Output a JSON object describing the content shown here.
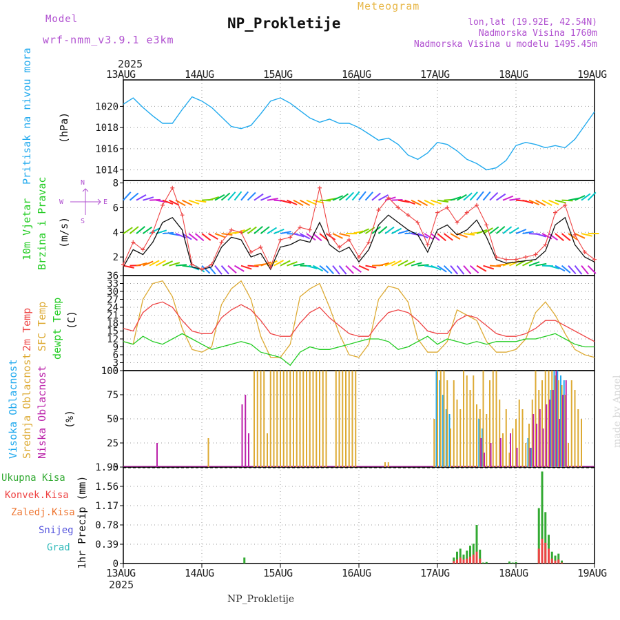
{
  "header": {
    "model_label": "Model",
    "model_name": "wrf-nmm_v3.9.1 e3km",
    "title": "NP_Prokletije",
    "meteogram_label": "Meteogram",
    "lonlat": "lon,lat (19.92E, 42.54N)",
    "elevation": "Nadmorska Visina 1760m",
    "model_elevation": "Nadmorska Visina u modelu 1495.45m"
  },
  "footer": {
    "station": "NP_Prokletije",
    "credit": "made by Angel"
  },
  "time_axis": {
    "year": "2025",
    "dates": [
      "13AUG",
      "14AUG",
      "15AUG",
      "16AUG",
      "17AUG",
      "18AUG",
      "19AUG"
    ]
  },
  "colors": {
    "pressure": "#22aaee",
    "wind_speed": "#111111",
    "wind_gust": "#ee4444",
    "temp_2m": "#ee4444",
    "temp_sfc": "#ddaa33",
    "dewpoint": "#22cc22",
    "cloud_high": "#22aaee",
    "cloud_mid": "#ddaa33",
    "cloud_low": "#bb22aa",
    "precip_total": "#33aa33",
    "precip_conv": "#ee4444",
    "precip_frz": "#ee7733",
    "snow": "#5555dd",
    "hail": "#33bbbb"
  },
  "chart_data": [
    {
      "type": "line",
      "id": "pressure",
      "ylabel_title": "Pritisak na nivou mora",
      "ylabel_unit": "(hPa)",
      "ylim": [
        1013,
        1022.5
      ],
      "yticks": [
        1014,
        1016,
        1018,
        1020
      ],
      "hours": [
        0,
        3,
        6,
        9,
        12,
        15,
        18,
        21,
        24,
        27,
        30,
        33,
        36,
        39,
        42,
        45,
        48,
        51,
        54,
        57,
        60,
        63,
        66,
        69,
        72,
        75,
        78,
        81,
        84,
        87,
        90,
        93,
        96,
        99,
        102,
        105,
        108,
        111,
        114,
        117,
        120,
        123,
        126,
        129,
        132,
        135,
        138,
        141,
        144
      ],
      "values": [
        1020.2,
        1020.8,
        1019.9,
        1019.1,
        1018.4,
        1018.4,
        1019.7,
        1020.9,
        1020.5,
        1019.9,
        1019.0,
        1018.1,
        1017.9,
        1018.2,
        1019.3,
        1020.5,
        1020.8,
        1020.3,
        1019.6,
        1018.9,
        1018.5,
        1018.8,
        1018.4,
        1018.4,
        1018.0,
        1017.4,
        1016.8,
        1017.0,
        1016.4,
        1015.4,
        1015.0,
        1015.6,
        1016.6,
        1016.4,
        1015.8,
        1015.0,
        1014.6,
        1014.0,
        1014.2,
        1014.9,
        1016.3,
        1016.6,
        1016.4,
        1016.1,
        1016.3,
        1016.1,
        1016.9,
        1018.2,
        1019.5
      ]
    },
    {
      "type": "line",
      "id": "wind",
      "ylabel_title": "10m Vjetar",
      "ylabel_title2": "Brzina i Pravac",
      "ylabel_unit": "(m/s)",
      "ylim": [
        0.5,
        8.2
      ],
      "yticks": [
        2,
        4,
        6,
        8
      ],
      "series": [
        {
          "name": "speed",
          "hours": [
            0,
            3,
            6,
            9,
            12,
            15,
            18,
            21,
            24,
            27,
            30,
            33,
            36,
            39,
            42,
            45,
            48,
            51,
            54,
            57,
            60,
            63,
            66,
            69,
            72,
            75,
            78,
            81,
            84,
            87,
            90,
            93,
            96,
            99,
            102,
            105,
            108,
            111,
            114,
            117,
            120,
            123,
            126,
            129,
            132,
            135,
            138,
            141,
            144
          ],
          "values": [
            1.2,
            2.6,
            2.2,
            3.2,
            4.8,
            5.2,
            4.2,
            1.2,
            1.0,
            1.2,
            2.8,
            3.6,
            3.4,
            2.0,
            2.3,
            1.0,
            2.8,
            3.0,
            3.4,
            3.2,
            4.8,
            3.0,
            2.4,
            2.8,
            1.6,
            2.6,
            4.6,
            5.4,
            4.8,
            4.2,
            3.8,
            2.4,
            4.2,
            4.6,
            3.8,
            4.2,
            5.0,
            3.6,
            1.8,
            1.5,
            1.6,
            1.7,
            1.8,
            2.5,
            4.6,
            5.2,
            3.0,
            2.0,
            1.6
          ]
        },
        {
          "name": "gust",
          "hours": [
            0,
            3,
            6,
            9,
            12,
            15,
            18,
            21,
            24,
            27,
            30,
            33,
            36,
            39,
            42,
            45,
            48,
            51,
            54,
            57,
            60,
            63,
            66,
            69,
            72,
            75,
            78,
            81,
            84,
            87,
            90,
            93,
            96,
            99,
            102,
            105,
            108,
            111,
            114,
            117,
            120,
            123,
            126,
            129,
            132,
            135,
            138,
            141,
            144
          ],
          "values": [
            1.4,
            3.2,
            2.6,
            4.0,
            6.2,
            7.6,
            5.4,
            1.4,
            1.0,
            1.4,
            3.2,
            4.2,
            4.0,
            2.4,
            2.8,
            1.2,
            3.4,
            3.6,
            4.4,
            4.2,
            7.6,
            3.8,
            2.8,
            3.4,
            2.0,
            3.2,
            5.8,
            6.8,
            6.0,
            5.4,
            4.8,
            3.0,
            5.6,
            6.0,
            4.8,
            5.6,
            6.2,
            4.6,
            2.0,
            1.8,
            1.8,
            2.0,
            2.2,
            3.0,
            5.6,
            6.2,
            3.8,
            2.4,
            1.8
          ]
        }
      ],
      "direction_key": {
        "north": "N",
        "south": "S",
        "west": "W",
        "east": "E"
      }
    },
    {
      "type": "line",
      "id": "temperature",
      "ylabel_title_2m": "2m Temp",
      "ylabel_title_sfc": "SFC Temp",
      "ylabel_title_dew": "dewpt Temp",
      "ylabel_unit": "(C)",
      "ylim": [
        0,
        36
      ],
      "yticks": [
        0,
        3,
        6,
        9,
        12,
        15,
        18,
        21,
        24,
        27,
        30,
        33,
        36
      ],
      "series": [
        {
          "name": "2m",
          "hours": [
            0,
            3,
            6,
            9,
            12,
            15,
            18,
            21,
            24,
            27,
            30,
            33,
            36,
            39,
            42,
            45,
            48,
            51,
            54,
            57,
            60,
            63,
            66,
            69,
            72,
            75,
            78,
            81,
            84,
            87,
            90,
            93,
            96,
            99,
            102,
            105,
            108,
            111,
            114,
            117,
            120,
            123,
            126,
            129,
            132,
            135,
            138,
            141,
            144
          ],
          "values": [
            16,
            15,
            22,
            25,
            26,
            24,
            19,
            15,
            14,
            14,
            20,
            23,
            25,
            23,
            19,
            14,
            13,
            13,
            18,
            22,
            24,
            20,
            17,
            14,
            13,
            13,
            18,
            22,
            23,
            22,
            19,
            15,
            14,
            14,
            19,
            21,
            20,
            17,
            14,
            13,
            13,
            14,
            16,
            19,
            19,
            17,
            15,
            13,
            11
          ]
        },
        {
          "name": "sfc",
          "hours": [
            0,
            3,
            6,
            9,
            12,
            15,
            18,
            21,
            24,
            27,
            30,
            33,
            36,
            39,
            42,
            45,
            48,
            51,
            54,
            57,
            60,
            63,
            66,
            69,
            72,
            75,
            78,
            81,
            84,
            87,
            90,
            93,
            96,
            99,
            102,
            105,
            108,
            111,
            114,
            117,
            120,
            123,
            126,
            129,
            132,
            135,
            138,
            141,
            144
          ],
          "values": [
            11,
            10,
            27,
            33,
            34,
            28,
            16,
            8,
            7,
            9,
            25,
            31,
            34,
            27,
            13,
            5,
            5,
            10,
            28,
            31,
            33,
            24,
            14,
            6,
            5,
            10,
            27,
            32,
            31,
            26,
            12,
            7,
            7,
            11,
            23,
            21,
            19,
            11,
            7,
            7,
            8,
            12,
            22,
            26,
            21,
            14,
            8,
            6,
            5
          ]
        },
        {
          "name": "dewpoint",
          "hours": [
            0,
            3,
            6,
            9,
            12,
            15,
            18,
            21,
            24,
            27,
            30,
            33,
            36,
            39,
            42,
            45,
            48,
            51,
            54,
            57,
            60,
            63,
            66,
            69,
            72,
            75,
            78,
            81,
            84,
            87,
            90,
            93,
            96,
            99,
            102,
            105,
            108,
            111,
            114,
            117,
            120,
            123,
            126,
            129,
            132,
            135,
            138,
            141,
            144
          ],
          "values": [
            11,
            10,
            13,
            11,
            10,
            12,
            14,
            12,
            10,
            8,
            9,
            10,
            11,
            10,
            7,
            6,
            5,
            2,
            7,
            9,
            8,
            8,
            9,
            10,
            11,
            12,
            12,
            11,
            8,
            9,
            11,
            13,
            10,
            12,
            11,
            10,
            11,
            10,
            11,
            11,
            11,
            12,
            12,
            13,
            14,
            12,
            10,
            9,
            9
          ]
        }
      ]
    },
    {
      "type": "bar",
      "id": "clouds",
      "ylabel_title_high": "Visoka Oblacnost",
      "ylabel_title_mid": "Srednja Oblacnost",
      "ylabel_title_low": "Niska Oblacnost",
      "ylabel_unit": "(%)",
      "ylim": [
        0,
        100
      ],
      "yticks": [
        0,
        25,
        50,
        75,
        100
      ],
      "series": [
        {
          "name": "high",
          "hours": [
            96,
            97,
            98,
            99,
            100,
            109,
            110,
            124,
            125,
            131,
            132,
            133,
            134,
            135
          ],
          "values": [
            100,
            90,
            75,
            60,
            55,
            50,
            40,
            30,
            20,
            80,
            100,
            100,
            95,
            90
          ]
        },
        {
          "name": "mid",
          "hours": [
            26,
            40,
            41,
            42,
            43,
            44,
            45,
            46,
            47,
            48,
            49,
            50,
            51,
            52,
            53,
            54,
            55,
            56,
            57,
            58,
            59,
            60,
            61,
            62,
            65,
            66,
            67,
            68,
            69,
            70,
            71,
            80,
            81,
            95,
            96,
            97,
            98,
            99,
            100,
            101,
            102,
            103,
            104,
            105,
            106,
            107,
            108,
            109,
            110,
            111,
            112,
            113,
            114,
            115,
            116,
            117,
            118,
            119,
            120,
            121,
            122,
            123,
            124,
            125,
            126,
            127,
            128,
            129,
            130,
            131,
            132,
            133,
            134,
            135,
            136,
            137,
            138,
            139,
            140
          ],
          "values": [
            30,
            100,
            100,
            100,
            100,
            35,
            100,
            100,
            100,
            100,
            100,
            100,
            100,
            100,
            100,
            100,
            100,
            100,
            100,
            100,
            100,
            100,
            100,
            100,
            100,
            100,
            100,
            100,
            100,
            100,
            100,
            5,
            5,
            50,
            100,
            100,
            100,
            90,
            40,
            90,
            70,
            60,
            100,
            95,
            80,
            95,
            65,
            60,
            100,
            55,
            90,
            100,
            100,
            70,
            35,
            60,
            15,
            40,
            50,
            70,
            60,
            25,
            45,
            70,
            100,
            80,
            90,
            100,
            100,
            100,
            95,
            90,
            85,
            75,
            25,
            90,
            80,
            60,
            50
          ]
        },
        {
          "name": "low",
          "hours": [
            10,
            36,
            37,
            38,
            109,
            110,
            112,
            115,
            118,
            120,
            124,
            125,
            126,
            127,
            128,
            129,
            130,
            131,
            132,
            133,
            134,
            135
          ],
          "values": [
            25,
            65,
            75,
            35,
            30,
            15,
            25,
            30,
            35,
            20,
            20,
            55,
            45,
            60,
            40,
            65,
            70,
            80,
            100,
            50,
            75,
            90
          ]
        }
      ]
    },
    {
      "type": "bar",
      "id": "precipitation",
      "ylabel_unit": "1hr Precip (mm)",
      "legend": [
        "Ukupna Kisa",
        "Konvek.Kisa",
        "Zaledj.Kisa",
        "Snijeg",
        "Grad"
      ],
      "ylim": [
        0,
        1.95
      ],
      "yticks": [
        0,
        0.39,
        0.78,
        1.17,
        1.56,
        1.95
      ],
      "hours": [
        37,
        101,
        102,
        103,
        104,
        105,
        106,
        107,
        108,
        109,
        110,
        111,
        118,
        119,
        120,
        127,
        128,
        129,
        130,
        131,
        132,
        133,
        134
      ],
      "values": [
        0.12,
        0.12,
        0.24,
        0.3,
        0.18,
        0.26,
        0.36,
        0.4,
        0.78,
        0.28,
        0.02,
        0.03,
        0.04,
        0.02,
        0.03,
        1.12,
        1.86,
        1.04,
        0.58,
        0.24,
        0.16,
        0.2,
        0.06
      ],
      "convective": [
        0,
        0.05,
        0.08,
        0.12,
        0.08,
        0.1,
        0.14,
        0.18,
        0.24,
        0.1,
        0,
        0,
        0,
        0,
        0,
        0.3,
        0.5,
        0.42,
        0.3,
        0.1,
        0.06,
        0.08,
        0.02
      ]
    }
  ]
}
